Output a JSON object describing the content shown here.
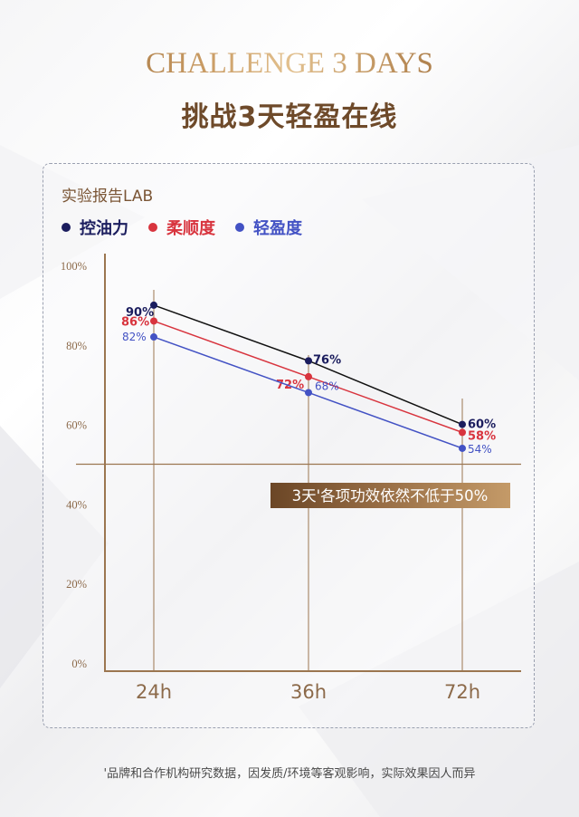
{
  "header": {
    "title_en": "CHALLENGE 3 DAYS",
    "title_zh": "挑战3天轻盈在线"
  },
  "panel": {
    "title": "实验报告LAB"
  },
  "footnote": "'品牌和合作机构研究数据，因发质/环境等客观影响，实际效果因人而异",
  "colors": {
    "gold": "#9b7650",
    "oil_control": "#1b1d5e",
    "softness": "#d8343e",
    "lightness": "#4352c4"
  },
  "chart_data": {
    "type": "line",
    "title": "实验报告LAB",
    "categories": [
      "24h",
      "36h",
      "72h"
    ],
    "ylim": [
      0,
      100
    ],
    "yticks": [
      "0%",
      "20%",
      "40%",
      "60%",
      "80%",
      "100%"
    ],
    "ytick_values": [
      0,
      20,
      40,
      60,
      80,
      100
    ],
    "threshold": 50,
    "annotation": "3天'各项功效依然不低于50%",
    "series": [
      {
        "name": "控油力",
        "color": "#1b1d5e",
        "line_color": "#111111",
        "values": [
          90,
          76,
          60
        ],
        "labels": [
          "90%",
          "76%",
          "60%"
        ]
      },
      {
        "name": "柔顺度",
        "color": "#d8343e",
        "line_color": "#d8343e",
        "values": [
          86,
          72,
          58
        ],
        "labels": [
          "86%",
          "72%",
          "58%"
        ]
      },
      {
        "name": "轻盈度",
        "color": "#4352c4",
        "line_color": "#4352c4",
        "values": [
          82,
          68,
          54
        ],
        "labels": [
          "82%",
          "68%",
          "54%"
        ]
      }
    ]
  }
}
